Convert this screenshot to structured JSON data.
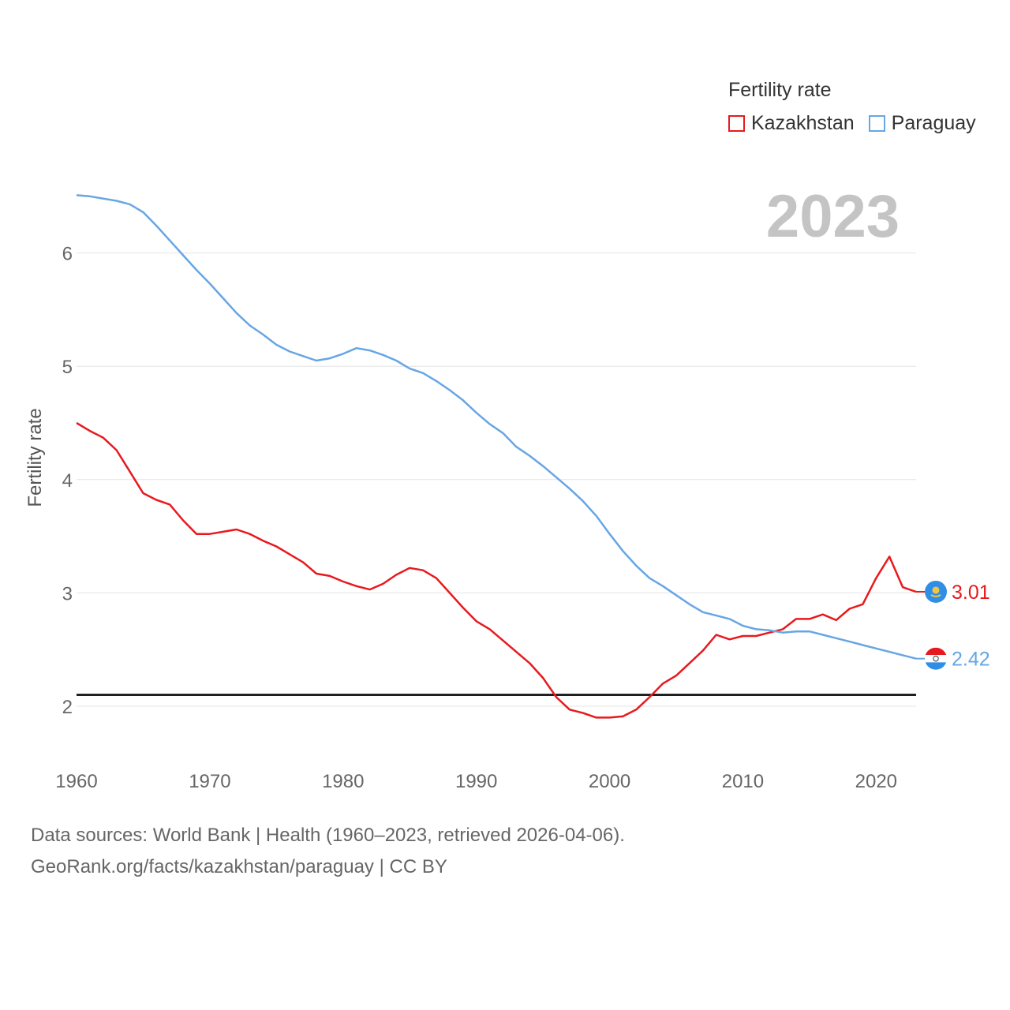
{
  "legend": {
    "title": "Fertility rate",
    "items": [
      {
        "label": "Kazakhstan",
        "color": "#e8191e"
      },
      {
        "label": "Paraguay",
        "color": "#67a6e4"
      }
    ]
  },
  "footer": {
    "line1": "Data sources: World Bank | Health (1960–2023, retrieved 2026-04-06).",
    "line2": "GeoRank.org/facts/kazakhstan/paraguay | CC BY"
  },
  "chart_data": {
    "type": "line",
    "title": "Fertility rate",
    "year_label": "2023",
    "xlabel": "",
    "ylabel": "Fertility rate",
    "xlim": [
      1960,
      2023
    ],
    "ylim": [
      1.5,
      6.8
    ],
    "xticks": [
      1960,
      1970,
      1980,
      1990,
      2000,
      2010,
      2020
    ],
    "yticks": [
      2,
      3,
      4,
      5,
      6
    ],
    "reference_line": 2.1,
    "x": [
      1960,
      1961,
      1962,
      1963,
      1964,
      1965,
      1966,
      1967,
      1968,
      1969,
      1970,
      1971,
      1972,
      1973,
      1974,
      1975,
      1976,
      1977,
      1978,
      1979,
      1980,
      1981,
      1982,
      1983,
      1984,
      1985,
      1986,
      1987,
      1988,
      1989,
      1990,
      1991,
      1992,
      1993,
      1994,
      1995,
      1996,
      1997,
      1998,
      1999,
      2000,
      2001,
      2002,
      2003,
      2004,
      2005,
      2006,
      2007,
      2008,
      2009,
      2010,
      2011,
      2012,
      2013,
      2014,
      2015,
      2016,
      2017,
      2018,
      2019,
      2020,
      2021,
      2022,
      2023
    ],
    "series": [
      {
        "name": "Kazakhstan",
        "color": "#e8191e",
        "end_label": "3.01",
        "values": [
          4.5,
          4.43,
          4.37,
          4.26,
          4.07,
          3.88,
          3.82,
          3.78,
          3.64,
          3.52,
          3.52,
          3.54,
          3.56,
          3.52,
          3.46,
          3.41,
          3.34,
          3.27,
          3.17,
          3.15,
          3.1,
          3.06,
          3.03,
          3.08,
          3.16,
          3.22,
          3.2,
          3.13,
          3.0,
          2.87,
          2.75,
          2.68,
          2.58,
          2.48,
          2.38,
          2.25,
          2.08,
          1.97,
          1.94,
          1.9,
          1.9,
          1.91,
          1.97,
          2.08,
          2.2,
          2.27,
          2.38,
          2.49,
          2.63,
          2.59,
          2.62,
          2.62,
          2.65,
          2.68,
          2.77,
          2.77,
          2.81,
          2.76,
          2.86,
          2.9,
          3.13,
          3.32,
          3.05,
          3.01
        ]
      },
      {
        "name": "Paraguay",
        "color": "#67a6e4",
        "end_label": "2.42",
        "values": [
          6.51,
          6.5,
          6.48,
          6.46,
          6.43,
          6.36,
          6.24,
          6.11,
          5.98,
          5.85,
          5.73,
          5.6,
          5.47,
          5.36,
          5.28,
          5.19,
          5.13,
          5.09,
          5.05,
          5.07,
          5.11,
          5.16,
          5.14,
          5.1,
          5.05,
          4.98,
          4.94,
          4.87,
          4.79,
          4.7,
          4.59,
          4.49,
          4.41,
          4.29,
          4.21,
          4.12,
          4.02,
          3.92,
          3.81,
          3.68,
          3.52,
          3.37,
          3.24,
          3.13,
          3.06,
          2.98,
          2.9,
          2.83,
          2.8,
          2.77,
          2.71,
          2.68,
          2.67,
          2.65,
          2.66,
          2.66,
          2.63,
          2.6,
          2.57,
          2.54,
          2.51,
          2.48,
          2.45,
          2.42
        ]
      }
    ]
  }
}
